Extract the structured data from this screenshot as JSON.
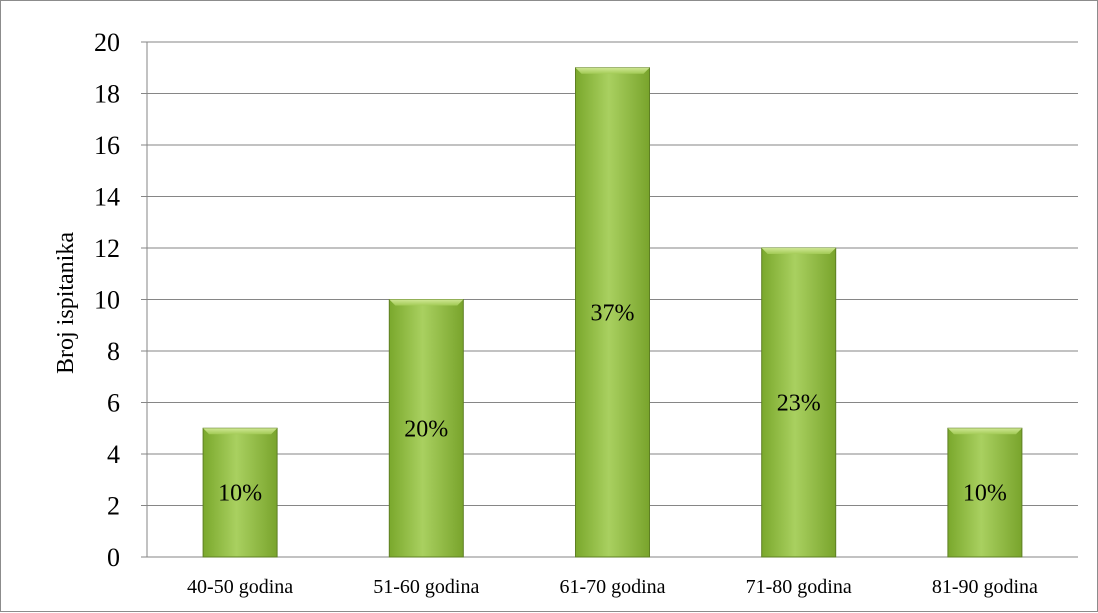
{
  "chart_data": {
    "type": "bar",
    "title": "",
    "xlabel": "",
    "ylabel": "Broj ispitanika",
    "categories": [
      "40-50 godina",
      "51-60 godina",
      "61-70 godina",
      "71-80 godina",
      "81-90 godina"
    ],
    "values": [
      5,
      10,
      19,
      12,
      5
    ],
    "data_labels": [
      "10%",
      "20%",
      "37%",
      "23%",
      "10%"
    ],
    "ylim": [
      0,
      20
    ],
    "yticks": [
      0,
      2,
      4,
      6,
      8,
      10,
      12,
      14,
      16,
      18,
      20
    ],
    "grid": true,
    "legend": "none",
    "colors": {
      "bar_light": "#a8cf5a",
      "bar_mid": "#8cbb3c",
      "bar_dark": "#6f9a28",
      "bar_edge": "#5e7f23",
      "grid": "#868686",
      "axis": "#868686",
      "frame": "#8c8c8c"
    }
  }
}
